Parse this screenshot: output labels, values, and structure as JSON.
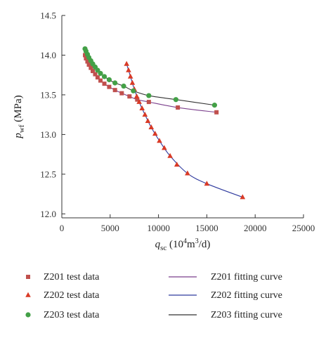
{
  "chart_data": {
    "type": "scatter",
    "xlabel": {
      "main": "q",
      "sub": "sc",
      "unit_pre": " (10",
      "unit_sup1": "4",
      "unit_mid": "m",
      "unit_sup2": "3",
      "unit_post": "/d)"
    },
    "ylabel": {
      "main": "p",
      "sub": "wf",
      "unit": " (MPa)"
    },
    "xlim": [
      0,
      25000
    ],
    "ylim": [
      11.95,
      14.5
    ],
    "xticks": [
      0,
      5000,
      10000,
      15000,
      20000,
      25000
    ],
    "yticks": [
      12.0,
      12.5,
      13.0,
      13.5,
      14.0,
      14.5
    ],
    "xtick_labels": [
      "0",
      "5000",
      "10000",
      "15000",
      "20000",
      "25000"
    ],
    "ytick_labels": [
      "12.0",
      "12.5",
      "13.0",
      "13.5",
      "14.0",
      "14.5"
    ],
    "grid": false,
    "legend_position": "bottom",
    "series": [
      {
        "name": "Z201 test data",
        "marker": "square",
        "color": "#c0504d",
        "points": [
          [
            2400,
            14.0
          ],
          [
            2500,
            13.96
          ],
          [
            2650,
            13.92
          ],
          [
            2800,
            13.88
          ],
          [
            3000,
            13.84
          ],
          [
            3200,
            13.8
          ],
          [
            3450,
            13.76
          ],
          [
            3700,
            13.72
          ],
          [
            4000,
            13.68
          ],
          [
            4400,
            13.64
          ],
          [
            4900,
            13.6
          ],
          [
            5500,
            13.56
          ],
          [
            6200,
            13.52
          ],
          [
            7000,
            13.48
          ],
          [
            7800,
            13.44
          ],
          [
            9000,
            13.41
          ],
          [
            12000,
            13.34
          ],
          [
            16000,
            13.28
          ]
        ]
      },
      {
        "name": "Z202 test data",
        "marker": "triangle",
        "color": "#d93a26",
        "points": [
          [
            6700,
            13.89
          ],
          [
            6900,
            13.81
          ],
          [
            7100,
            13.73
          ],
          [
            7300,
            13.65
          ],
          [
            7500,
            13.57
          ],
          [
            7750,
            13.48
          ],
          [
            8000,
            13.41
          ],
          [
            8300,
            13.33
          ],
          [
            8600,
            13.25
          ],
          [
            8900,
            13.17
          ],
          [
            9250,
            13.09
          ],
          [
            9650,
            13.01
          ],
          [
            10100,
            12.92
          ],
          [
            10600,
            12.83
          ],
          [
            11200,
            12.73
          ],
          [
            11900,
            12.62
          ],
          [
            13000,
            12.51
          ],
          [
            15000,
            12.38
          ],
          [
            18700,
            12.21
          ]
        ]
      },
      {
        "name": "Z203 test data",
        "marker": "circle",
        "color": "#43a047",
        "points": [
          [
            2400,
            14.08
          ],
          [
            2500,
            14.05
          ],
          [
            2650,
            14.01
          ],
          [
            2800,
            13.97
          ],
          [
            3000,
            13.93
          ],
          [
            3200,
            13.89
          ],
          [
            3450,
            13.85
          ],
          [
            3700,
            13.81
          ],
          [
            4000,
            13.77
          ],
          [
            4400,
            13.73
          ],
          [
            4900,
            13.69
          ],
          [
            5500,
            13.65
          ],
          [
            6400,
            13.61
          ],
          [
            7400,
            13.55
          ],
          [
            9000,
            13.49
          ],
          [
            11800,
            13.44
          ],
          [
            15800,
            13.37
          ]
        ]
      },
      {
        "name": "Z201 fitting curve",
        "line_color": "#7b3f8c",
        "fit": {
          "a": 12.86,
          "b": 1.95,
          "c": 0.35
        }
      },
      {
        "name": "Z202 fitting curve",
        "line_color": "#2f3a9e",
        "fit_points": [
          [
            6700,
            13.89
          ],
          [
            7100,
            13.73
          ],
          [
            7500,
            13.57
          ],
          [
            8000,
            13.41
          ],
          [
            8600,
            13.25
          ],
          [
            9250,
            13.09
          ],
          [
            10100,
            12.92
          ],
          [
            11200,
            12.73
          ],
          [
            13000,
            12.51
          ],
          [
            15000,
            12.38
          ],
          [
            18700,
            12.21
          ]
        ]
      },
      {
        "name": "Z203 fitting curve",
        "line_color": "#333333",
        "fit": {
          "a": 13.02,
          "b": 1.7,
          "c": 0.33
        }
      }
    ]
  }
}
